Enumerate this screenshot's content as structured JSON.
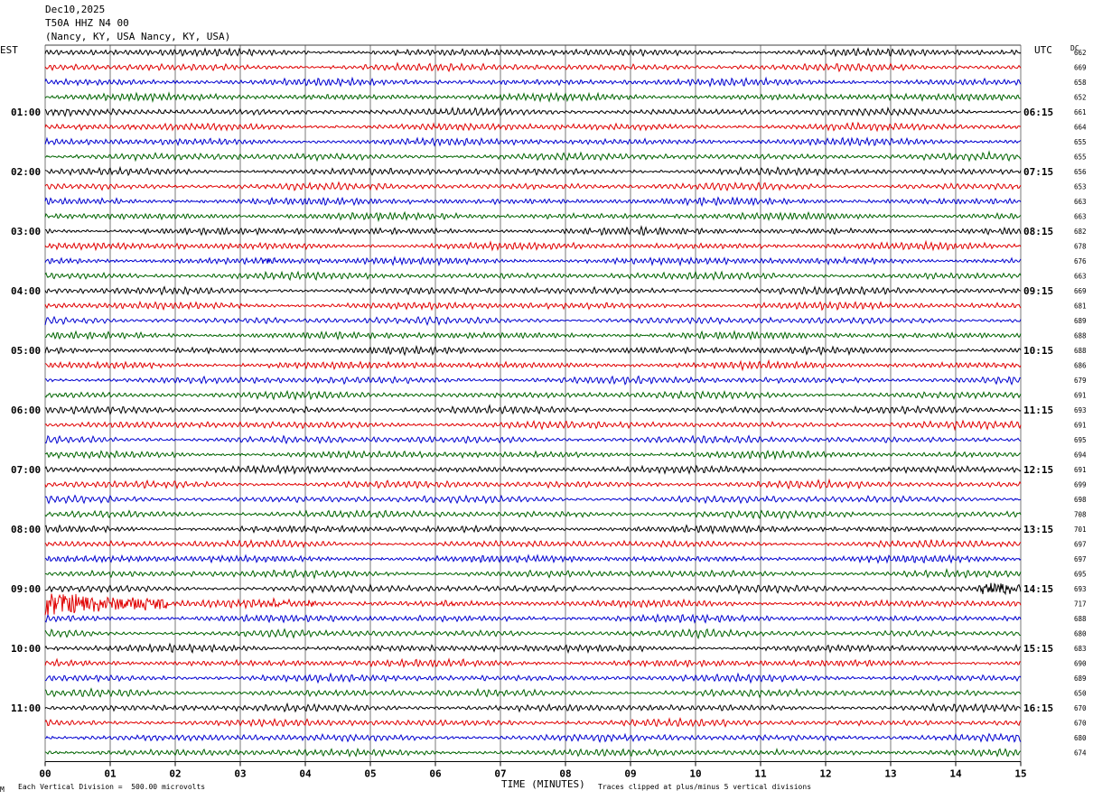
{
  "header": {
    "date": "Dec10,2025",
    "station": "T50A HHZ N4 00",
    "location": "(Nancy, KY, USA Nancy, KY, USA)"
  },
  "left_zone": "EST",
  "right_zone": "UTC",
  "dc_label": "DC",
  "footer": {
    "xlabel": "TIME (MINUTES)",
    "scale_note": "Each Vertical Division =  500.00 microvolts",
    "clip_note": "Traces clipped at plus/minus 5 vertical divisions",
    "corner_mark": "M"
  },
  "colors": {
    "black": "#000000",
    "red": "#e00000",
    "blue": "#0000d0",
    "green": "#006400",
    "grid": "#404040"
  },
  "chart_data": {
    "type": "line",
    "title": "",
    "xlabel": "TIME (MINUTES)",
    "xlim": [
      0,
      15
    ],
    "x_ticks": [
      "00",
      "01",
      "02",
      "03",
      "04",
      "05",
      "06",
      "07",
      "08",
      "09",
      "10",
      "11",
      "12",
      "13",
      "14",
      "15"
    ],
    "rows_per_hour": 4,
    "trace_colors_cycle": [
      "black",
      "red",
      "blue",
      "green"
    ],
    "left_hour_labels": [
      "01:00",
      "02:00",
      "03:00",
      "04:00",
      "05:00",
      "06:00",
      "07:00",
      "08:00",
      "09:00",
      "10:00",
      "11:00"
    ],
    "right_hour_labels": [
      "06:15",
      "07:15",
      "08:15",
      "09:15",
      "10:15",
      "11:15",
      "12:15",
      "13:15",
      "14:15",
      "15:15",
      "16:15"
    ],
    "dc_values": [
      "662",
      "669",
      "658",
      "652",
      "661",
      "664",
      "655",
      "655",
      "656",
      "653",
      "663",
      "663",
      "682",
      "678",
      "676",
      "663",
      "669",
      "681",
      "689",
      "688",
      "688",
      "686",
      "679",
      "691",
      "693",
      "691",
      "695",
      "694",
      "691",
      "699",
      "698",
      "708",
      "701",
      "697",
      "697",
      "695",
      "693",
      "717",
      "688",
      "680",
      "683",
      "690",
      "689",
      "650",
      "670",
      "670",
      "680",
      "674"
    ],
    "events": [
      {
        "row": 37,
        "start_min": 0.0,
        "end_min": 1.9,
        "strength": "large"
      },
      {
        "row": 37,
        "start_min": 3.1,
        "end_min": 4.2,
        "strength": "small"
      },
      {
        "row": 37,
        "start_min": 6.0,
        "end_min": 6.3,
        "strength": "small"
      },
      {
        "row": 36,
        "start_min": 14.3,
        "end_min": 15.0,
        "strength": "medium"
      },
      {
        "row": 14,
        "start_min": 3.3,
        "end_min": 3.6,
        "strength": "small"
      }
    ]
  }
}
